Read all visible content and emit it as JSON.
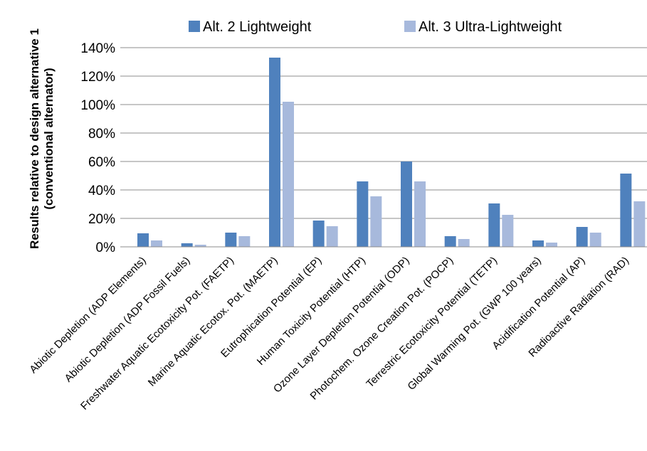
{
  "chart_data": {
    "type": "bar",
    "ylabel_line1": "Results relative to design alternative 1",
    "ylabel_line2": "(conventional alternator)",
    "ylim": [
      0,
      140
    ],
    "yticks": [
      "0%",
      "20%",
      "40%",
      "60%",
      "80%",
      "100%",
      "120%",
      "140%"
    ],
    "grid": true,
    "legend_position": "top",
    "categories": [
      "Abiotic Depletion (ADP Elements)",
      "Abiotic Depletion (ADP Fossil Fuels)",
      "Freshwater Aquatic Ecotoxicity Pot. (FAETP)",
      "Marine Aquatic Ecotox. Pot. (MAETP)",
      "Eutrophication Potential (EP)",
      "Human Toxicity Potential (HTP)",
      "Ozone Layer Depletion Potential (ODP)",
      "Photochem. Ozone Creation Pot. (POCP)",
      "Terrestric Ecotoxicity Potential (TETP)",
      "Global Warming Pot. (GWP 100 years)",
      "Acidification Potential (AP)",
      "Radioactive Radiation (RAD)"
    ],
    "series": [
      {
        "name": "Alt. 2 Lightweight",
        "color": "#4f81bd",
        "values": [
          9.5,
          2.5,
          10,
          133,
          18.5,
          46,
          60,
          7.5,
          30.5,
          4.5,
          14,
          51.5
        ]
      },
      {
        "name": "Alt. 3 Ultra-Lightweight",
        "color": "#a7b9dc",
        "values": [
          4.5,
          1.5,
          7.5,
          102,
          14.5,
          35.5,
          46,
          5.5,
          22.5,
          3,
          10,
          32
        ]
      }
    ]
  }
}
